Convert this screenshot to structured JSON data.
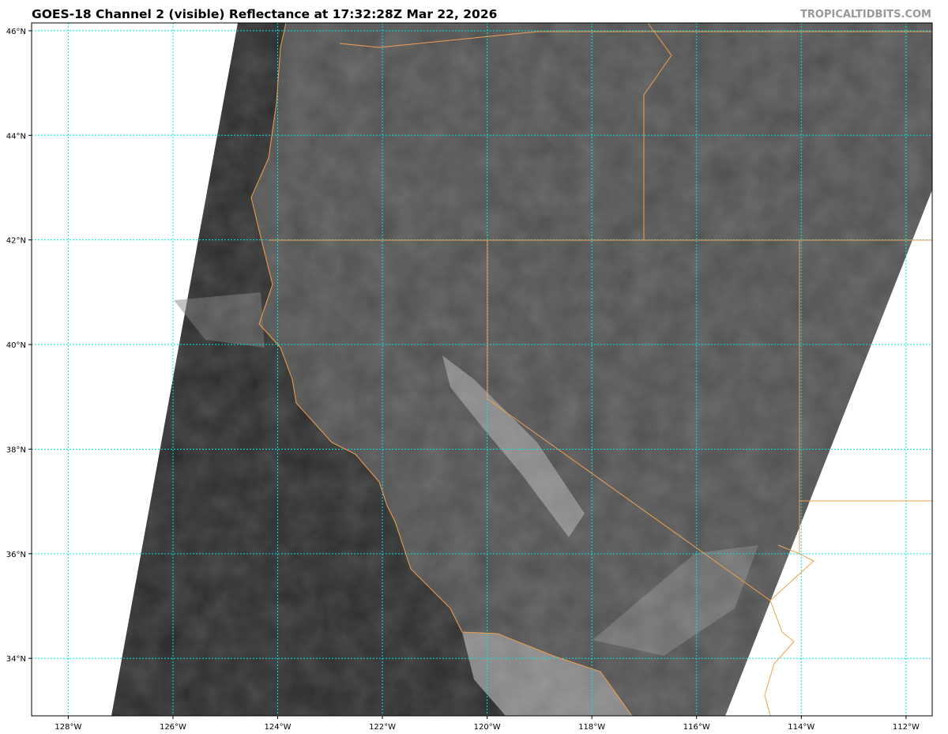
{
  "header": {
    "title": "GOES-18 Channel 2 (visible) Reflectance at 17:32:28Z Mar 22, 2026",
    "credit": "TROPICALTIDBITS.COM"
  },
  "map": {
    "extent": {
      "lon": [
        -128.7,
        -111.5
      ],
      "lat": [
        32.9,
        46.15
      ]
    },
    "longitude_ticks": [
      {
        "value": -128,
        "label": "128°W"
      },
      {
        "value": -126,
        "label": "126°W"
      },
      {
        "value": -124,
        "label": "124°W"
      },
      {
        "value": -122,
        "label": "122°W"
      },
      {
        "value": -120,
        "label": "120°W"
      },
      {
        "value": -118,
        "label": "118°W"
      },
      {
        "value": -116,
        "label": "116°W"
      },
      {
        "value": -114,
        "label": "114°W"
      },
      {
        "value": -112,
        "label": "112°W"
      }
    ],
    "latitude_ticks": [
      {
        "value": 46,
        "label": "46°N"
      },
      {
        "value": 44,
        "label": "44°N"
      },
      {
        "value": 42,
        "label": "42°N"
      },
      {
        "value": 40,
        "label": "40°N"
      },
      {
        "value": 38,
        "label": "38°N"
      },
      {
        "value": 36,
        "label": "36°N"
      },
      {
        "value": 34,
        "label": "34°N"
      }
    ],
    "colors": {
      "gridlines": "#00e5e5",
      "boundaries": "#f0a050",
      "ocean_imagery": "#2a2a2a",
      "land_imagery": "#555555",
      "no_data": "#ffffff"
    }
  }
}
